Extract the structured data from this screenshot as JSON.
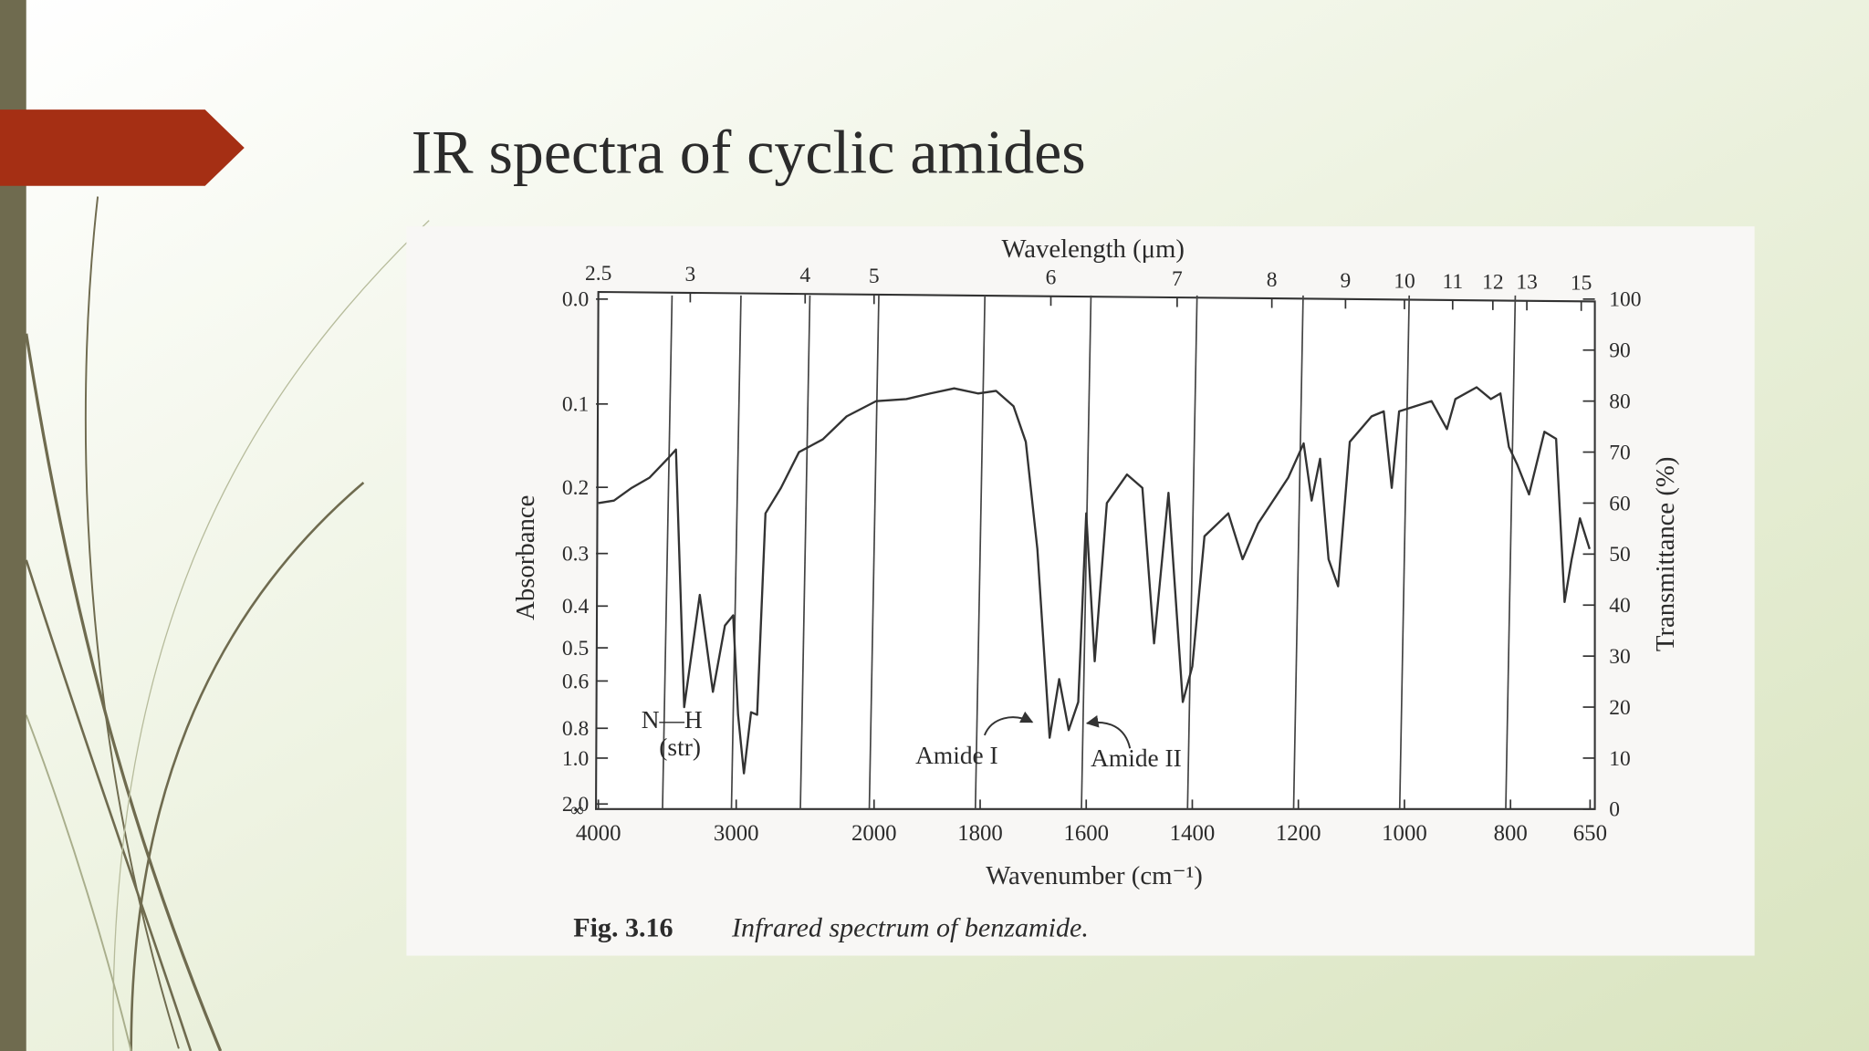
{
  "slide": {
    "title": "IR spectra of cyclic amides"
  },
  "chart_data": {
    "type": "line",
    "x_label": "Wavenumber (cm⁻¹)",
    "x2_label": "Wavelength (μm)",
    "y_label": "Transmittance (%)",
    "y2_label": "Absorbance",
    "xlim": [
      4000,
      650
    ],
    "x_scale_change": 2000,
    "xticks": [
      4000,
      3000,
      2000,
      1800,
      1600,
      1400,
      1200,
      1000,
      800,
      650
    ],
    "x2ticks": [
      2.5,
      3,
      4,
      5,
      6,
      7,
      8,
      9,
      10,
      11,
      12,
      13,
      15
    ],
    "xgrid": [
      3500,
      3000,
      2500,
      2000,
      1800,
      1600,
      1400,
      1200,
      1000,
      800
    ],
    "ylim": [
      0,
      100
    ],
    "yticks": [
      0,
      10,
      20,
      30,
      40,
      50,
      60,
      70,
      80,
      90,
      100
    ],
    "y2ticks": [
      {
        "value": 0,
        "label": "0.0"
      },
      0.1,
      0.2,
      0.3,
      0.4,
      0.5,
      0.6,
      0.8,
      {
        "value": 1,
        "label": "1.0"
      },
      {
        "value": 2,
        "label": "2.0"
      }
    ],
    "y2_end_label": "∞",
    "color": "#333333",
    "x": [
      4000,
      3887,
      3758,
      3628,
      3498,
      3437,
      3377,
      3264,
      3169,
      3082,
      3022,
      2987,
      2944,
      2892,
      2848,
      2788,
      2675,
      2545,
      2372,
      2199,
      1996,
      1939,
      1894,
      1849,
      1804,
      1770,
      1737,
      1714,
      1692,
      1669,
      1651,
      1633,
      1615,
      1600,
      1584,
      1561,
      1523,
      1494,
      1472,
      1445,
      1418,
      1400,
      1377,
      1332,
      1305,
      1276,
      1219,
      1190,
      1175,
      1159,
      1143,
      1125,
      1103,
      1062,
      1039,
      1024,
      1010,
      949,
      920,
      904,
      864,
      837,
      819,
      803,
      787,
      765,
      736,
      714,
      698,
      685,
      669,
      651
    ],
    "values": [
      60,
      60.5,
      63,
      65,
      68.7,
      70.5,
      20,
      42,
      23,
      36,
      38,
      18.5,
      7,
      19,
      18.5,
      58,
      63,
      70,
      72.5,
      77,
      80,
      80.4,
      81.5,
      82.5,
      81.5,
      82,
      79,
      72,
      51,
      14,
      25.5,
      15.5,
      21,
      58,
      29,
      60,
      65.6,
      63,
      32.5,
      62,
      21,
      28,
      53.5,
      58,
      49,
      56,
      65,
      71.7,
      60.5,
      68.7,
      49,
      43.7,
      72,
      77,
      78,
      63,
      78,
      80,
      74.5,
      80.4,
      82.7,
      80.4,
      81.5,
      71,
      67.5,
      61.7,
      74,
      72.6,
      40.6,
      48.8,
      57,
      51
    ],
    "annotations": [
      "N—H",
      "(str)",
      "Amide I",
      "Amide II"
    ],
    "caption": {
      "number": "Fig. 3.16",
      "text": "Infrared spectrum of benzamide."
    }
  }
}
